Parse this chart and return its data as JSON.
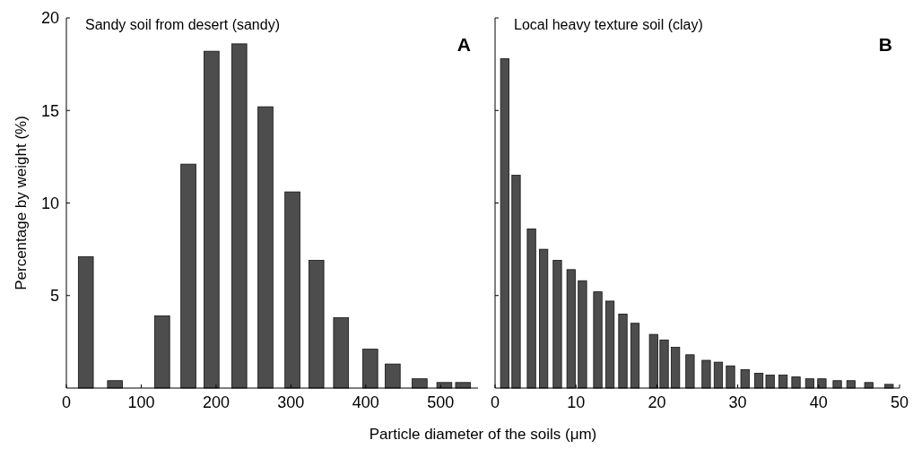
{
  "chart_data": [
    {
      "type": "bar",
      "title": "Sandy soil from desert (sandy)",
      "xlabel": "Particle diameter of the soils (μm)",
      "ylabel": "Percentage by weight (%)",
      "annotations": [
        "A"
      ],
      "x": [
        26,
        65,
        128,
        163,
        194,
        231,
        266,
        302,
        334,
        367,
        406,
        436,
        472,
        505,
        530
      ],
      "series": [
        {
          "color": "#4d4d4d",
          "values": [
            7.1,
            0.4,
            3.9,
            12.1,
            18.2,
            18.6,
            15.2,
            10.6,
            6.9,
            3.8,
            2.1,
            1.3,
            0.5,
            0.3,
            0.3
          ]
        }
      ],
      "xlim": [
        0,
        550
      ],
      "xticks": [
        0,
        100,
        200,
        300,
        400,
        500
      ],
      "ylim": [
        0,
        20
      ],
      "yticks": [
        5,
        10,
        15,
        20
      ]
    },
    {
      "type": "bar",
      "title": "Local heavy texture soil (clay)",
      "annotations": [
        "B"
      ],
      "x": [
        1.2,
        2.6,
        4.5,
        6.0,
        7.7,
        9.4,
        10.8,
        12.7,
        14.2,
        15.8,
        17.3,
        19.6,
        20.9,
        22.3,
        24.1,
        26.1,
        27.6,
        29.1,
        30.9,
        32.6,
        34.0,
        35.6,
        37.2,
        38.9,
        40.4,
        42.3,
        44.0,
        46.2,
        48.7
      ],
      "series": [
        {
          "color": "#4d4d4d",
          "values": [
            17.8,
            11.5,
            8.6,
            7.5,
            6.9,
            6.4,
            5.8,
            5.2,
            4.7,
            4.0,
            3.5,
            2.9,
            2.6,
            2.2,
            1.8,
            1.5,
            1.4,
            1.2,
            1.0,
            0.8,
            0.7,
            0.7,
            0.6,
            0.5,
            0.5,
            0.4,
            0.4,
            0.3,
            0.2
          ]
        }
      ],
      "xlim": [
        0,
        50
      ],
      "xticks": [
        0,
        10,
        20,
        30,
        40,
        50
      ],
      "ylim": [
        0,
        20
      ],
      "yticks": [
        5,
        10,
        15,
        20
      ],
      "tick_labels": "x"
    }
  ]
}
